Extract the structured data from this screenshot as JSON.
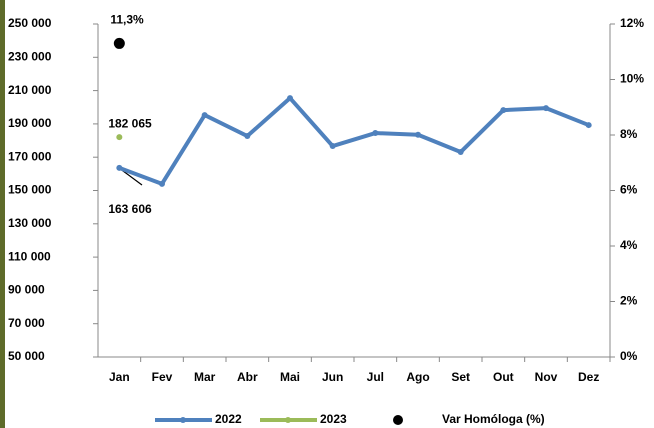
{
  "chart_data": {
    "type": "line",
    "categories": [
      "Jan",
      "Fev",
      "Mar",
      "Abr",
      "Mai",
      "Jun",
      "Jul",
      "Ago",
      "Set",
      "Out",
      "Nov",
      "Dez"
    ],
    "series": [
      {
        "name": "2022",
        "color": "#4f81bd",
        "line": true,
        "values": [
          163606,
          154000,
          195300,
          182700,
          205500,
          176700,
          184500,
          183500,
          173100,
          198300,
          199500,
          189300
        ],
        "value_labels": [
          "163 606",
          null,
          null,
          null,
          null,
          null,
          null,
          null,
          null,
          null,
          null,
          null
        ]
      },
      {
        "name": "2023",
        "color": "#9bbb59",
        "line": true,
        "values": [
          182065,
          null,
          null,
          null,
          null,
          null,
          null,
          null,
          null,
          null,
          null,
          null
        ],
        "value_labels": [
          "182 065",
          null,
          null,
          null,
          null,
          null,
          null,
          null,
          null,
          null,
          null,
          null
        ]
      },
      {
        "name": "Var Homóloga (%)",
        "color": "#000000",
        "line": false,
        "axis": "y2",
        "values": [
          11.3,
          null,
          null,
          null,
          null,
          null,
          null,
          null,
          null,
          null,
          null,
          null
        ],
        "value_labels": [
          "11,3%",
          null,
          null,
          null,
          null,
          null,
          null,
          null,
          null,
          null,
          null,
          null
        ]
      }
    ],
    "ylim": [
      50000,
      250000
    ],
    "yticks": [
      {
        "value": 50000,
        "label": "50 000"
      },
      {
        "value": 70000,
        "label": "70 000"
      },
      {
        "value": 90000,
        "label": "90 000"
      },
      {
        "value": 110000,
        "label": "110 000"
      },
      {
        "value": 130000,
        "label": "130 000"
      },
      {
        "value": 150000,
        "label": "150 000"
      },
      {
        "value": 170000,
        "label": "170 000"
      },
      {
        "value": 190000,
        "label": "190 000"
      },
      {
        "value": 210000,
        "label": "210 000"
      },
      {
        "value": 230000,
        "label": "230 000"
      },
      {
        "value": 250000,
        "label": "250 000"
      }
    ],
    "y2lim": [
      0,
      12
    ],
    "y2ticks": [
      {
        "value": 0,
        "label": "0%"
      },
      {
        "value": 2,
        "label": "2%"
      },
      {
        "value": 4,
        "label": "4%"
      },
      {
        "value": 6,
        "label": "6%"
      },
      {
        "value": 8,
        "label": "8%"
      },
      {
        "value": 10,
        "label": "10%"
      },
      {
        "value": 12,
        "label": "12%"
      }
    ],
    "legend": "bottom"
  }
}
